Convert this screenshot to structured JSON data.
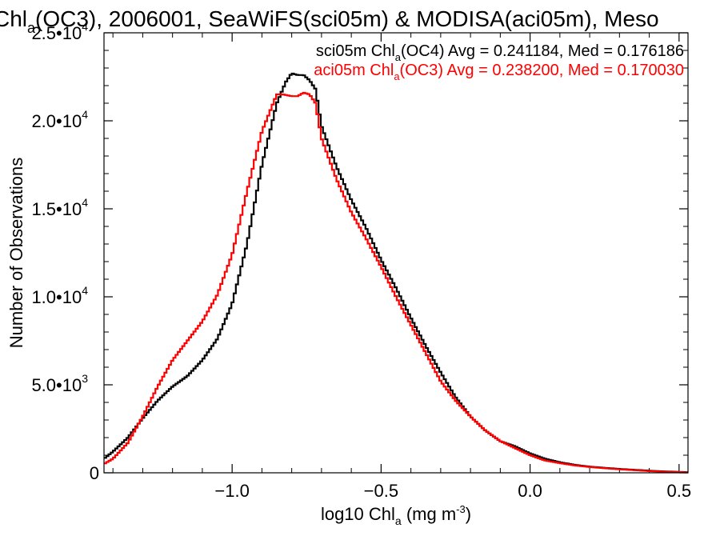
{
  "chart_data": {
    "type": "line",
    "title": {
      "pre": "Chl",
      "sub": "a",
      "post": "(OC3), 2006001, SeaWiFS(sci05m) & MODISA(aci05m), Meso"
    },
    "xlabel": {
      "pre": "log10 Chl",
      "sub": "a",
      "mid": " (mg m",
      "sup": "-3",
      "post": ")"
    },
    "ylabel": "Number of Observations",
    "xlim": [
      -1.43,
      0.53
    ],
    "ylim": [
      0,
      25000
    ],
    "x_ticks": [
      {
        "value": -1.0,
        "label": "−1.0"
      },
      {
        "value": -0.5,
        "label": "−0.5"
      },
      {
        "value": 0.0,
        "label": "0.0"
      },
      {
        "value": 0.5,
        "label": "0.5"
      }
    ],
    "y_ticks": [
      {
        "value": 0,
        "mant": "0",
        "exp": ""
      },
      {
        "value": 5000,
        "mant": "5.0•10",
        "exp": "3"
      },
      {
        "value": 10000,
        "mant": "1.0•10",
        "exp": "4"
      },
      {
        "value": 15000,
        "mant": "1.5•10",
        "exp": "4"
      },
      {
        "value": 20000,
        "mant": "2.0•10",
        "exp": "4"
      },
      {
        "value": 25000,
        "mant": "2.5•10",
        "exp": "4"
      }
    ],
    "grid": false,
    "legend_position": "top-right",
    "series": [
      {
        "color": "#000000",
        "legend": {
          "pre": "sci05m Chl",
          "sub": "a",
          "post": "(OC4) Avg = 0.241184, Med = 0.176186"
        },
        "x": [
          -1.43,
          -1.4,
          -1.35,
          -1.3,
          -1.25,
          -1.2,
          -1.15,
          -1.1,
          -1.05,
          -1.0,
          -0.95,
          -0.9,
          -0.85,
          -0.82,
          -0.8,
          -0.78,
          -0.76,
          -0.74,
          -0.72,
          -0.7,
          -0.65,
          -0.6,
          -0.55,
          -0.5,
          -0.45,
          -0.4,
          -0.35,
          -0.3,
          -0.25,
          -0.2,
          -0.15,
          -0.1,
          -0.05,
          0.0,
          0.05,
          0.1,
          0.15,
          0.2,
          0.25,
          0.3,
          0.35,
          0.4,
          0.45,
          0.5,
          0.53
        ],
        "y": [
          800,
          1200,
          2000,
          3100,
          4100,
          4900,
          5500,
          6400,
          7600,
          9600,
          13000,
          17500,
          21000,
          22200,
          22700,
          22600,
          22600,
          22300,
          21800,
          19700,
          17400,
          15500,
          13900,
          12100,
          10500,
          8800,
          7200,
          5700,
          4300,
          3200,
          2400,
          1800,
          1500,
          1100,
          800,
          600,
          450,
          350,
          280,
          220,
          170,
          120,
          80,
          50,
          30
        ]
      },
      {
        "color": "#ff0000",
        "legend": {
          "pre": "aci05m Chl",
          "sub": "a",
          "post": "(OC3) Avg = 0.238200, Med = 0.170030"
        },
        "x": [
          -1.43,
          -1.4,
          -1.35,
          -1.3,
          -1.25,
          -1.2,
          -1.15,
          -1.1,
          -1.05,
          -1.0,
          -0.95,
          -0.9,
          -0.85,
          -0.83,
          -0.8,
          -0.78,
          -0.76,
          -0.74,
          -0.72,
          -0.7,
          -0.65,
          -0.6,
          -0.55,
          -0.5,
          -0.45,
          -0.4,
          -0.35,
          -0.3,
          -0.25,
          -0.2,
          -0.15,
          -0.1,
          -0.05,
          0.0,
          0.05,
          0.1,
          0.15,
          0.2,
          0.25,
          0.3,
          0.35,
          0.4,
          0.45,
          0.5,
          0.53
        ],
        "y": [
          500,
          800,
          1700,
          3200,
          4900,
          6400,
          7500,
          8600,
          10100,
          12400,
          16000,
          19400,
          21500,
          21500,
          21400,
          21400,
          21600,
          21500,
          21000,
          19000,
          16700,
          14800,
          13300,
          11700,
          10000,
          8400,
          6800,
          5200,
          4100,
          3200,
          2400,
          1800,
          1400,
          1000,
          700,
          550,
          420,
          330,
          260,
          200,
          150,
          100,
          60,
          40,
          20
        ]
      }
    ]
  }
}
